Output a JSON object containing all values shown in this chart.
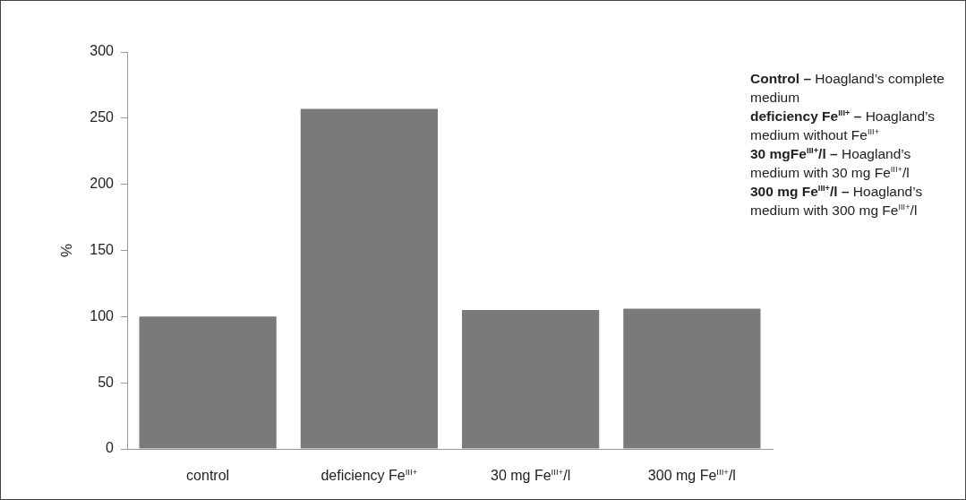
{
  "chart_data": {
    "type": "bar",
    "ylabel": "%",
    "categories": [
      "control",
      "deficiency Fe$^{III+}$",
      "30 mg Fe$^{III+}$/l",
      "300 mg Fe$^{III+}$/l"
    ],
    "values": [
      100,
      257,
      105,
      106
    ],
    "color": "#7a7a7a",
    "ylim": [
      0,
      300
    ],
    "yticks": [
      0,
      50,
      100,
      150,
      200,
      250,
      300
    ],
    "grid": false,
    "legend": false,
    "annotations": [
      "Control –",
      "Hoagland’s complete medium",
      "deficiency Fe$^{III+}$ –",
      "Hoagland’s medium without Fe$^{III+}$",
      "30 mgFe$^{III+}$/l –",
      "Hoagland’s medium with 30 mg Fe$^{III+}$/l",
      "300 mg Fe$^{III+}$/l –",
      "Hoagland’s medium with 300 mg Fe$^{III+}$/l"
    ]
  }
}
